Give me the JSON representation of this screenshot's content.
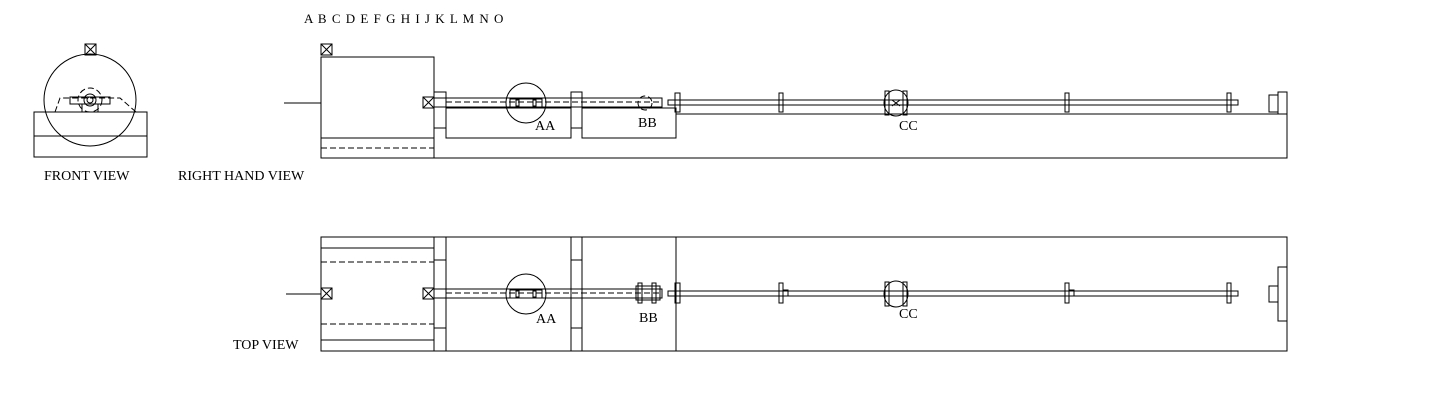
{
  "ruler_letters": "A B  C D E F G H I J K L M N O",
  "views": {
    "front": "FRONT VIEW",
    "right_hand": "RIGHT HAND VIEW",
    "top": "TOP VIEW"
  },
  "components": {
    "aa": "AA",
    "bb": "BB",
    "cc": "CC"
  }
}
